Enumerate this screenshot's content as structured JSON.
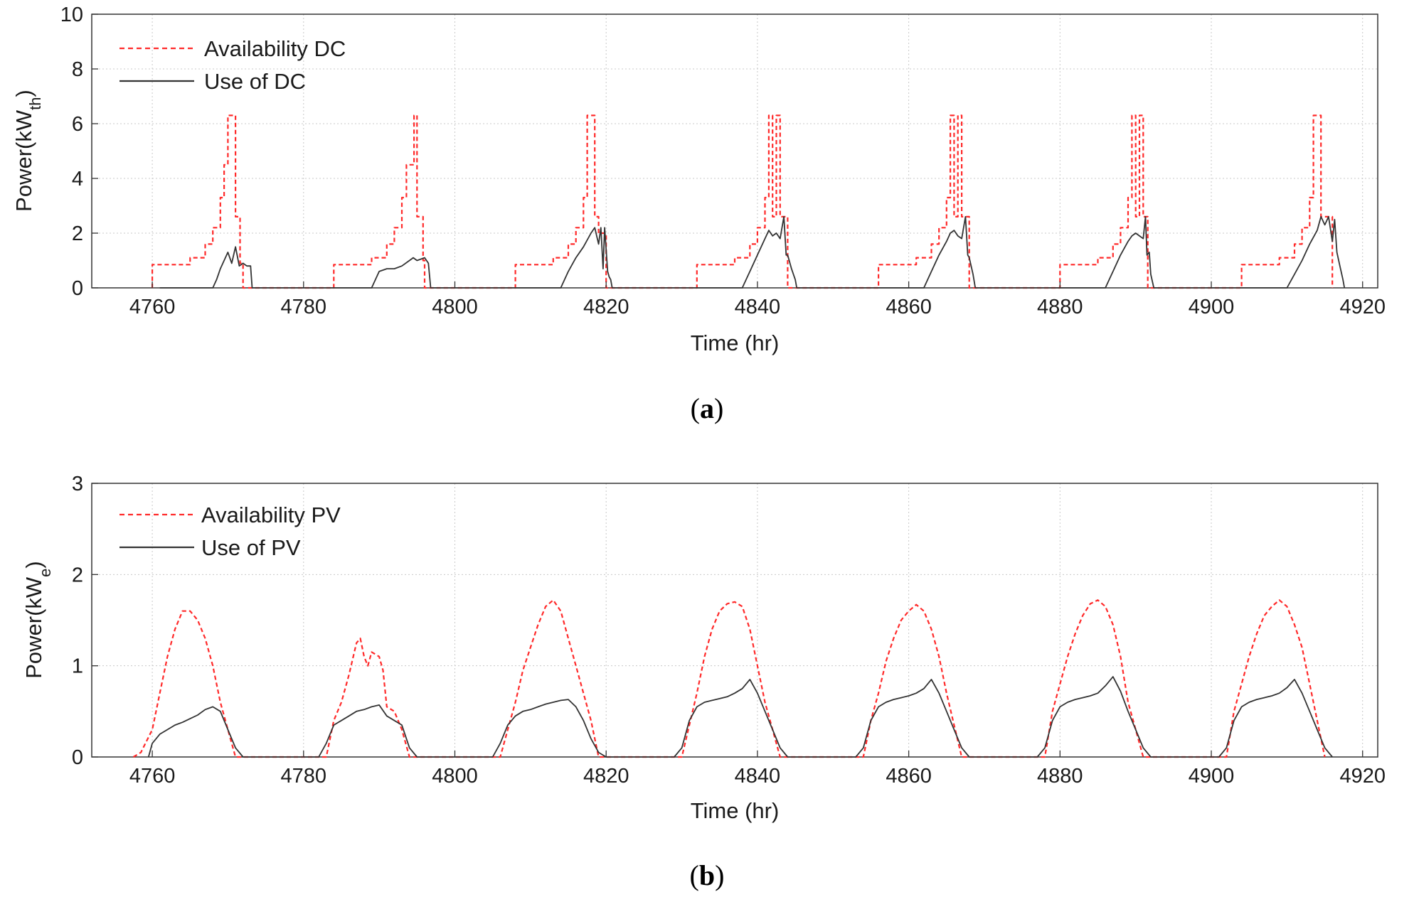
{
  "chart_data": [
    {
      "type": "line",
      "panel": "a",
      "caption_letter": "a",
      "xlabel": "Time (hr)",
      "ylabel_main": "Power(kW",
      "ylabel_sub": "th",
      "ylabel_close": ")",
      "xlim": [
        4752,
        4922
      ],
      "ylim": [
        0,
        10
      ],
      "xticks": [
        4760,
        4780,
        4800,
        4820,
        4840,
        4860,
        4880,
        4900,
        4920
      ],
      "yticks": [
        0,
        2,
        4,
        6,
        8,
        10
      ],
      "grid": true,
      "legend_position": "top-left",
      "series": [
        {
          "name": "Availability DC",
          "style": "dashed",
          "color": "#ff2a2a",
          "x": [
            4760,
            4760,
            4761,
            4765,
            4765,
            4767,
            4767,
            4768,
            4768,
            4769,
            4769,
            4769.5,
            4769.5,
            4770,
            4770,
            4771,
            4771,
            4771.6,
            4771.6,
            4772,
            4772,
            4784,
            4784,
            4789,
            4789,
            4791,
            4791,
            4792,
            4792,
            4793,
            4793,
            4793.6,
            4793.6,
            4794.6,
            4794.6,
            4795,
            4795,
            4795.8,
            4795.8,
            4796,
            4796,
            4808,
            4808,
            4813,
            4813,
            4815,
            4815,
            4816,
            4816,
            4817,
            4817,
            4817.5,
            4817.5,
            4818.5,
            4818.5,
            4819,
            4819,
            4820,
            4820,
            4832,
            4832,
            4837,
            4837,
            4839,
            4839,
            4840,
            4840,
            4841,
            4841,
            4841.5,
            4841.5,
            4842,
            4842,
            4842.5,
            4842.5,
            4843,
            4843,
            4844,
            4844,
            4856,
            4856,
            4861,
            4861,
            4863,
            4863,
            4864,
            4864,
            4865,
            4865,
            4865.5,
            4865.5,
            4866,
            4866,
            4866.5,
            4866.5,
            4867,
            4867,
            4868,
            4868,
            4880,
            4880,
            4885,
            4885,
            4887,
            4887,
            4888,
            4888,
            4889,
            4889,
            4889.5,
            4889.5,
            4890,
            4890,
            4890.5,
            4890.5,
            4891,
            4891,
            4891.6,
            4891.6,
            4904,
            4904,
            4909,
            4909,
            4911,
            4911,
            4912,
            4912,
            4913,
            4913,
            4913.5,
            4913.5,
            4914.5,
            4914.5,
            4915,
            4915,
            4916,
            4916
          ],
          "values": [
            0,
            0.85,
            0.85,
            0.85,
            1.1,
            1.1,
            1.6,
            1.6,
            2.2,
            2.2,
            3.3,
            3.3,
            4.5,
            4.5,
            6.3,
            6.3,
            2.6,
            2.6,
            0.9,
            0.9,
            0,
            0,
            0.85,
            0.85,
            1.1,
            1.1,
            1.6,
            1.6,
            2.2,
            2.2,
            3.3,
            3.3,
            4.5,
            4.5,
            6.3,
            6.3,
            2.6,
            2.6,
            1.0,
            1.0,
            0,
            0,
            0.85,
            0.85,
            1.1,
            1.1,
            1.6,
            1.6,
            2.2,
            2.2,
            3.3,
            3.3,
            6.3,
            6.3,
            2.6,
            2.6,
            2.0,
            2.0,
            0,
            0,
            0.85,
            0.85,
            1.1,
            1.1,
            1.6,
            1.6,
            2.2,
            2.2,
            3.3,
            3.3,
            6.3,
            6.3,
            2.6,
            2.6,
            6.3,
            6.3,
            2.6,
            2.6,
            0,
            0,
            0.85,
            0.85,
            1.1,
            1.1,
            1.6,
            1.6,
            2.2,
            2.2,
            3.3,
            3.3,
            6.3,
            6.3,
            2.6,
            2.6,
            6.3,
            6.3,
            2.6,
            2.6,
            0,
            0,
            0.85,
            0.85,
            1.1,
            1.1,
            1.6,
            1.6,
            2.2,
            2.2,
            3.3,
            3.3,
            6.3,
            6.3,
            2.6,
            2.6,
            6.3,
            6.3,
            2.6,
            2.6,
            0,
            0,
            0.85,
            0.85,
            1.1,
            1.1,
            1.6,
            1.6,
            2.2,
            2.2,
            3.3,
            3.3,
            6.3,
            6.3,
            2.6,
            2.6,
            2.6,
            2.6,
            0
          ]
        },
        {
          "name": "Use of DC",
          "style": "solid",
          "color": "#333333",
          "x": [
            4761,
            4768,
            4768.5,
            4769,
            4769.5,
            4770,
            4770.5,
            4771,
            4771.5,
            4772,
            4772.5,
            4773,
            4773.2,
            4785,
            4789,
            4790,
            4791,
            4792,
            4793,
            4794,
            4794.5,
            4795,
            4796,
            4796.5,
            4796.8,
            4809,
            4814,
            4815,
            4816,
            4817,
            4818,
            4818.5,
            4819,
            4819.3,
            4819.6,
            4819.8,
            4820.2,
            4820.4,
            4820.6,
            4820.8,
            4833,
            4838,
            4839,
            4840,
            4841,
            4841.5,
            4842,
            4842.5,
            4843,
            4843.5,
            4843.8,
            4844,
            4844.5,
            4845,
            4845.2,
            4857,
            4862,
            4863,
            4864,
            4865,
            4865.5,
            4866,
            4866.5,
            4867,
            4867.5,
            4867.8,
            4868,
            4868.5,
            4868.8,
            4881,
            4886,
            4887,
            4888,
            4889,
            4889.5,
            4890,
            4890.5,
            4891,
            4891.3,
            4891.5,
            4891.8,
            4892,
            4892.4,
            4905,
            4910,
            4911,
            4912,
            4913,
            4914,
            4914.5,
            4915,
            4915.5,
            4916,
            4916.3,
            4916.6,
            4917,
            4917.4,
            4917.6
          ],
          "values": [
            0,
            0,
            0.3,
            0.7,
            1.0,
            1.3,
            0.9,
            1.5,
            0.8,
            0.9,
            0.8,
            0.8,
            0,
            0,
            0,
            0.6,
            0.7,
            0.7,
            0.8,
            1.0,
            1.1,
            1.0,
            1.1,
            0.9,
            0,
            0,
            0,
            0.6,
            1.1,
            1.5,
            2.0,
            2.2,
            1.6,
            2.2,
            0.7,
            2.2,
            0.6,
            0.4,
            0.3,
            0,
            0,
            0,
            0.6,
            1.2,
            1.8,
            2.1,
            1.9,
            2.0,
            1.8,
            2.6,
            1.2,
            1.2,
            0.7,
            0.3,
            0,
            0,
            0,
            0.6,
            1.2,
            1.7,
            2.0,
            2.1,
            1.9,
            1.8,
            2.6,
            1.2,
            1.1,
            0.5,
            0,
            0,
            0,
            0.6,
            1.2,
            1.7,
            1.9,
            2.0,
            1.9,
            1.8,
            2.6,
            1.2,
            1.3,
            0.5,
            0,
            0,
            0,
            0.5,
            1.0,
            1.6,
            2.1,
            2.6,
            2.3,
            2.6,
            1.7,
            2.5,
            1.3,
            0.8,
            0.3,
            0
          ]
        }
      ]
    },
    {
      "type": "line",
      "panel": "b",
      "caption_letter": "b",
      "xlabel": "Time (hr)",
      "ylabel_main": "Power(kW",
      "ylabel_sub": "e",
      "ylabel_close": ")",
      "xlim": [
        4752,
        4922
      ],
      "ylim": [
        0,
        3
      ],
      "xticks": [
        4760,
        4780,
        4800,
        4820,
        4840,
        4860,
        4880,
        4900,
        4920
      ],
      "yticks": [
        0,
        1,
        2,
        3
      ],
      "grid": true,
      "legend_position": "top-left",
      "series": [
        {
          "name": "Availability PV",
          "style": "dashed",
          "color": "#ff2a2a",
          "x": [
            4757.5,
            4758.5,
            4760,
            4761,
            4762,
            4763,
            4764,
            4765,
            4766,
            4767,
            4768,
            4769,
            4770,
            4771,
            4783,
            4784,
            4785,
            4786,
            4787,
            4787.5,
            4788,
            4788.5,
            4789,
            4790,
            4790.5,
            4791,
            4792,
            4793,
            4794,
            4806,
            4807,
            4808,
            4809,
            4810,
            4811,
            4812,
            4813,
            4814,
            4815,
            4816,
            4817,
            4818,
            4819,
            4830,
            4831,
            4832,
            4833,
            4834,
            4835,
            4836,
            4837,
            4838,
            4839,
            4840,
            4841,
            4842,
            4843,
            4854,
            4855,
            4856,
            4857,
            4858,
            4859,
            4860,
            4861,
            4862,
            4863,
            4864,
            4865,
            4866,
            4867,
            4878,
            4879,
            4880,
            4881,
            4882,
            4883,
            4884,
            4885,
            4886,
            4887,
            4888,
            4889,
            4890,
            4891,
            4902,
            4903,
            4904,
            4905,
            4906,
            4907,
            4908,
            4909,
            4910,
            4911,
            4912,
            4913,
            4914,
            4915
          ],
          "values": [
            0,
            0.05,
            0.3,
            0.7,
            1.1,
            1.4,
            1.6,
            1.6,
            1.5,
            1.3,
            1.0,
            0.6,
            0.3,
            0,
            0,
            0.4,
            0.6,
            0.9,
            1.25,
            1.3,
            1.1,
            1.0,
            1.15,
            1.1,
            0.95,
            0.55,
            0.5,
            0.3,
            0,
            0,
            0.3,
            0.6,
            0.95,
            1.2,
            1.45,
            1.65,
            1.72,
            1.6,
            1.3,
            1.0,
            0.7,
            0.4,
            0,
            0,
            0.35,
            0.7,
            1.1,
            1.4,
            1.6,
            1.68,
            1.7,
            1.65,
            1.4,
            1.0,
            0.6,
            0.3,
            0,
            0,
            0.4,
            0.7,
            1.05,
            1.3,
            1.5,
            1.6,
            1.67,
            1.6,
            1.4,
            1.1,
            0.7,
            0.35,
            0,
            0,
            0.5,
            0.8,
            1.1,
            1.35,
            1.55,
            1.68,
            1.72,
            1.65,
            1.45,
            1.1,
            0.6,
            0.3,
            0,
            0,
            0.5,
            0.8,
            1.1,
            1.35,
            1.55,
            1.65,
            1.72,
            1.65,
            1.45,
            1.2,
            0.8,
            0.4,
            0
          ]
        },
        {
          "name": "Use of PV",
          "style": "solid",
          "color": "#333333",
          "x": [
            4759.5,
            4760,
            4761,
            4762,
            4763,
            4764,
            4765,
            4766,
            4767,
            4768,
            4769,
            4770,
            4771,
            4772,
            4782,
            4783,
            4784,
            4785,
            4786,
            4787,
            4788,
            4789,
            4790,
            4791,
            4792,
            4793,
            4794,
            4795,
            4805,
            4806,
            4807,
            4808,
            4809,
            4810,
            4811,
            4812,
            4813,
            4814,
            4815,
            4816,
            4817,
            4818,
            4819,
            4820,
            4829,
            4830,
            4831,
            4832,
            4833,
            4834,
            4835,
            4836,
            4837,
            4838,
            4839,
            4840,
            4841,
            4842,
            4843,
            4844,
            4853,
            4854,
            4855,
            4856,
            4857,
            4858,
            4859,
            4860,
            4861,
            4862,
            4863,
            4864,
            4865,
            4866,
            4867,
            4868,
            4877,
            4878,
            4879,
            4880,
            4881,
            4882,
            4883,
            4884,
            4885,
            4886,
            4887,
            4888,
            4889,
            4890,
            4891,
            4892,
            4901,
            4902,
            4903,
            4904,
            4905,
            4906,
            4907,
            4908,
            4909,
            4910,
            4911,
            4912,
            4913,
            4914,
            4915,
            4916
          ],
          "values": [
            0,
            0.15,
            0.25,
            0.3,
            0.35,
            0.38,
            0.42,
            0.46,
            0.52,
            0.55,
            0.5,
            0.3,
            0.1,
            0,
            0,
            0.15,
            0.35,
            0.4,
            0.45,
            0.5,
            0.52,
            0.55,
            0.57,
            0.45,
            0.4,
            0.35,
            0.1,
            0,
            0,
            0.15,
            0.35,
            0.45,
            0.5,
            0.52,
            0.55,
            0.58,
            0.6,
            0.62,
            0.63,
            0.55,
            0.4,
            0.2,
            0.05,
            0,
            0,
            0.1,
            0.4,
            0.55,
            0.6,
            0.62,
            0.64,
            0.66,
            0.7,
            0.75,
            0.85,
            0.7,
            0.5,
            0.3,
            0.1,
            0,
            0,
            0.1,
            0.4,
            0.55,
            0.6,
            0.63,
            0.65,
            0.67,
            0.7,
            0.75,
            0.85,
            0.7,
            0.5,
            0.3,
            0.1,
            0,
            0,
            0.1,
            0.4,
            0.55,
            0.6,
            0.63,
            0.65,
            0.67,
            0.7,
            0.78,
            0.88,
            0.72,
            0.5,
            0.3,
            0.1,
            0,
            0,
            0.1,
            0.4,
            0.55,
            0.6,
            0.63,
            0.65,
            0.67,
            0.7,
            0.76,
            0.85,
            0.7,
            0.5,
            0.3,
            0.1,
            0
          ]
        }
      ]
    }
  ]
}
